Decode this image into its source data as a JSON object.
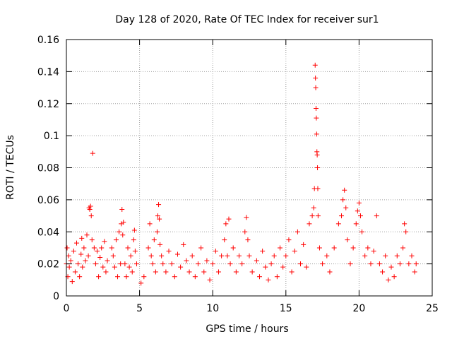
{
  "chart_data": {
    "type": "scatter",
    "title": "Day 128 of 2020, Rate Of TEC Index for receiver sur1",
    "xlabel": "GPS time / hours",
    "ylabel": "ROTI / TECUs",
    "xlim": [
      0,
      25
    ],
    "ylim": [
      0,
      0.16
    ],
    "xticks": [
      0,
      5,
      10,
      15,
      20,
      25
    ],
    "xtick_labels": [
      "0",
      "5",
      "10",
      "15",
      "20",
      "25"
    ],
    "yticks": [
      0,
      0.02,
      0.04,
      0.06,
      0.08,
      0.1,
      0.12,
      0.14,
      0.16
    ],
    "ytick_labels": [
      "0",
      "0.02",
      "0.04",
      "0.06",
      "0.08",
      "0.1",
      "0.12",
      "0.14",
      "0.16"
    ],
    "grid": true,
    "marker": "+",
    "color": "#ff0000",
    "series": [
      {
        "name": "",
        "points": [
          [
            0.0,
            0.02
          ],
          [
            0.05,
            0.03
          ],
          [
            0.1,
            0.012
          ],
          [
            0.15,
            0.025
          ],
          [
            0.2,
            0.018
          ],
          [
            0.3,
            0.022
          ],
          [
            0.4,
            0.009
          ],
          [
            0.5,
            0.028
          ],
          [
            0.6,
            0.015
          ],
          [
            0.7,
            0.033
          ],
          [
            0.8,
            0.02
          ],
          [
            0.9,
            0.012
          ],
          [
            1.0,
            0.026
          ],
          [
            1.05,
            0.036
          ],
          [
            1.1,
            0.018
          ],
          [
            1.2,
            0.03
          ],
          [
            1.3,
            0.022
          ],
          [
            1.4,
            0.038
          ],
          [
            1.5,
            0.025
          ],
          [
            1.55,
            0.055
          ],
          [
            1.6,
            0.054
          ],
          [
            1.65,
            0.056
          ],
          [
            1.7,
            0.05
          ],
          [
            1.75,
            0.035
          ],
          [
            1.8,
            0.089
          ],
          [
            1.9,
            0.03
          ],
          [
            2.0,
            0.02
          ],
          [
            2.1,
            0.028
          ],
          [
            2.2,
            0.012
          ],
          [
            2.3,
            0.024
          ],
          [
            2.4,
            0.03
          ],
          [
            2.5,
            0.018
          ],
          [
            2.6,
            0.034
          ],
          [
            2.7,
            0.015
          ],
          [
            2.8,
            0.022
          ],
          [
            3.1,
            0.03
          ],
          [
            3.2,
            0.025
          ],
          [
            3.3,
            0.018
          ],
          [
            3.4,
            0.035
          ],
          [
            3.5,
            0.012
          ],
          [
            3.6,
            0.04
          ],
          [
            3.7,
            0.02
          ],
          [
            3.75,
            0.045
          ],
          [
            3.8,
            0.054
          ],
          [
            3.85,
            0.038
          ],
          [
            3.9,
            0.046
          ],
          [
            4.0,
            0.02
          ],
          [
            4.1,
            0.012
          ],
          [
            4.2,
            0.03
          ],
          [
            4.3,
            0.018
          ],
          [
            4.4,
            0.025
          ],
          [
            4.5,
            0.015
          ],
          [
            4.6,
            0.035
          ],
          [
            4.65,
            0.041
          ],
          [
            4.7,
            0.028
          ],
          [
            4.8,
            0.02
          ],
          [
            5.1,
            0.008
          ],
          [
            5.3,
            0.012
          ],
          [
            5.6,
            0.03
          ],
          [
            5.7,
            0.045
          ],
          [
            5.8,
            0.025
          ],
          [
            5.9,
            0.02
          ],
          [
            6.0,
            0.035
          ],
          [
            6.1,
            0.015
          ],
          [
            6.2,
            0.04
          ],
          [
            6.25,
            0.05
          ],
          [
            6.3,
            0.057
          ],
          [
            6.35,
            0.048
          ],
          [
            6.4,
            0.032
          ],
          [
            6.5,
            0.025
          ],
          [
            6.6,
            0.02
          ],
          [
            6.8,
            0.015
          ],
          [
            7.0,
            0.028
          ],
          [
            7.2,
            0.02
          ],
          [
            7.4,
            0.012
          ],
          [
            7.6,
            0.026
          ],
          [
            7.8,
            0.018
          ],
          [
            8.0,
            0.032
          ],
          [
            8.2,
            0.022
          ],
          [
            8.4,
            0.015
          ],
          [
            8.6,
            0.025
          ],
          [
            8.8,
            0.012
          ],
          [
            9.0,
            0.02
          ],
          [
            9.2,
            0.03
          ],
          [
            9.4,
            0.015
          ],
          [
            9.6,
            0.022
          ],
          [
            9.8,
            0.01
          ],
          [
            10.0,
            0.02
          ],
          [
            10.2,
            0.028
          ],
          [
            10.4,
            0.015
          ],
          [
            10.6,
            0.025
          ],
          [
            10.8,
            0.035
          ],
          [
            10.9,
            0.045
          ],
          [
            11.0,
            0.025
          ],
          [
            11.1,
            0.048
          ],
          [
            11.2,
            0.02
          ],
          [
            11.4,
            0.03
          ],
          [
            11.6,
            0.015
          ],
          [
            11.8,
            0.025
          ],
          [
            12.0,
            0.02
          ],
          [
            12.2,
            0.04
          ],
          [
            12.3,
            0.049
          ],
          [
            12.4,
            0.035
          ],
          [
            12.5,
            0.025
          ],
          [
            12.7,
            0.015
          ],
          [
            13.0,
            0.022
          ],
          [
            13.2,
            0.012
          ],
          [
            13.4,
            0.028
          ],
          [
            13.6,
            0.018
          ],
          [
            13.8,
            0.01
          ],
          [
            14.0,
            0.02
          ],
          [
            14.2,
            0.025
          ],
          [
            14.4,
            0.012
          ],
          [
            14.6,
            0.03
          ],
          [
            14.8,
            0.018
          ],
          [
            15.0,
            0.025
          ],
          [
            15.2,
            0.035
          ],
          [
            15.4,
            0.015
          ],
          [
            15.6,
            0.028
          ],
          [
            15.8,
            0.04
          ],
          [
            16.0,
            0.02
          ],
          [
            16.2,
            0.032
          ],
          [
            16.4,
            0.018
          ],
          [
            16.6,
            0.045
          ],
          [
            16.8,
            0.05
          ],
          [
            16.9,
            0.055
          ],
          [
            16.95,
            0.067
          ],
          [
            17.0,
            0.144
          ],
          [
            17.02,
            0.136
          ],
          [
            17.04,
            0.13
          ],
          [
            17.06,
            0.117
          ],
          [
            17.08,
            0.111
          ],
          [
            17.1,
            0.101
          ],
          [
            17.12,
            0.09
          ],
          [
            17.14,
            0.088
          ],
          [
            17.16,
            0.08
          ],
          [
            17.18,
            0.067
          ],
          [
            17.2,
            0.05
          ],
          [
            17.3,
            0.03
          ],
          [
            17.5,
            0.02
          ],
          [
            17.8,
            0.025
          ],
          [
            18.0,
            0.015
          ],
          [
            18.3,
            0.03
          ],
          [
            18.6,
            0.045
          ],
          [
            18.8,
            0.05
          ],
          [
            18.9,
            0.06
          ],
          [
            19.0,
            0.066
          ],
          [
            19.1,
            0.055
          ],
          [
            19.2,
            0.035
          ],
          [
            19.4,
            0.02
          ],
          [
            19.6,
            0.03
          ],
          [
            19.8,
            0.045
          ],
          [
            19.9,
            0.053
          ],
          [
            20.0,
            0.058
          ],
          [
            20.1,
            0.05
          ],
          [
            20.2,
            0.04
          ],
          [
            20.4,
            0.025
          ],
          [
            20.6,
            0.03
          ],
          [
            20.8,
            0.02
          ],
          [
            21.0,
            0.028
          ],
          [
            21.2,
            0.05
          ],
          [
            21.4,
            0.02
          ],
          [
            21.6,
            0.015
          ],
          [
            21.8,
            0.025
          ],
          [
            22.0,
            0.01
          ],
          [
            22.2,
            0.018
          ],
          [
            22.4,
            0.012
          ],
          [
            22.6,
            0.025
          ],
          [
            22.8,
            0.02
          ],
          [
            23.0,
            0.03
          ],
          [
            23.1,
            0.045
          ],
          [
            23.2,
            0.04
          ],
          [
            23.4,
            0.02
          ],
          [
            23.6,
            0.025
          ],
          [
            23.8,
            0.015
          ],
          [
            23.9,
            0.02
          ]
        ]
      }
    ]
  }
}
